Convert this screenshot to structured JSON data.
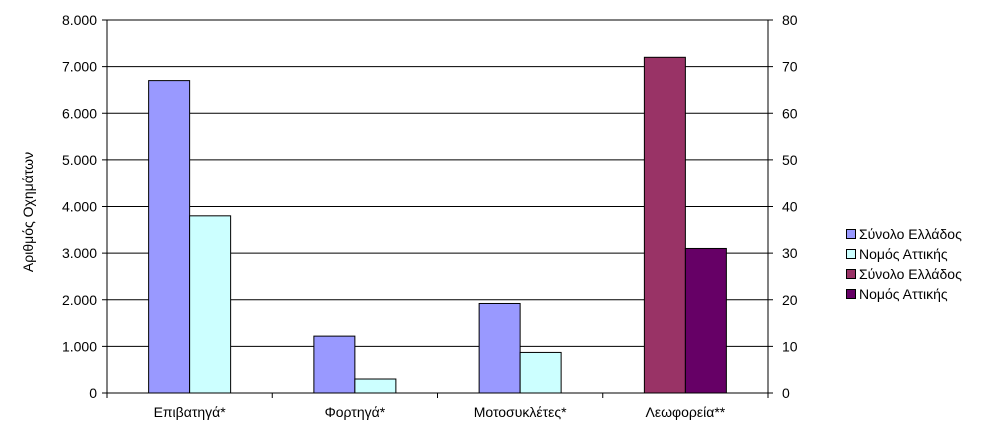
{
  "chart_data": {
    "type": "bar",
    "title": "",
    "categories": [
      "Επιβατηγά*",
      "Φορτηγά*",
      "Μοτοσυκλέτες*",
      "Λεωφορεία**"
    ],
    "ylabel": "Αριθμός Οχημάτων",
    "ylim": [
      0,
      8000
    ],
    "y_ticks": [
      "0",
      "1.000",
      "2.000",
      "3.000",
      "4.000",
      "5.000",
      "6.000",
      "7.000",
      "8.000"
    ],
    "y2lim": [
      0,
      80
    ],
    "y2_ticks": [
      "0",
      "10",
      "20",
      "30",
      "40",
      "50",
      "60",
      "70",
      "80"
    ],
    "grid": true,
    "legend_position": "right",
    "series": [
      {
        "name": "Σύνολο Ελλάδος",
        "axis": "left",
        "color": "#9999ff",
        "values": [
          6700,
          1220,
          1920,
          null
        ]
      },
      {
        "name": "Νομός Αττικής",
        "axis": "left",
        "color": "#ccffff",
        "values": [
          3800,
          300,
          870,
          null
        ]
      },
      {
        "name": "Σύνολο Ελλάδος",
        "axis": "right",
        "color": "#993366",
        "values": [
          null,
          null,
          null,
          72
        ]
      },
      {
        "name": "Νομός Αττικής",
        "axis": "right",
        "color": "#660066",
        "values": [
          null,
          null,
          null,
          31
        ]
      }
    ]
  }
}
